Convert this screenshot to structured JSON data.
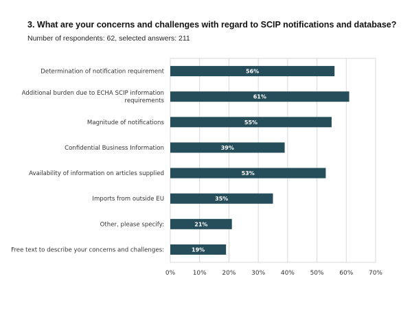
{
  "header": {
    "title": "3. What are your concerns and challenges with regard to SCIP notifications and database?",
    "subtitle": "Number of respondents: 62, selected answers: 211"
  },
  "chart_data": {
    "type": "bar",
    "orientation": "horizontal",
    "categories": [
      [
        "Determination of notification requirement"
      ],
      [
        "Additional burden due to ECHA SCIP information",
        "requirements"
      ],
      [
        "Magnitude of notifications"
      ],
      [
        "Confidential Business Information"
      ],
      [
        "Availability of information on articles supplied"
      ],
      [
        "Imports from outside EU"
      ],
      [
        "Other, please specify:"
      ],
      [
        "Free text to describe your concerns and challenges:"
      ]
    ],
    "values": [
      56,
      61,
      55,
      39,
      53,
      35,
      21,
      19
    ],
    "value_labels": [
      "56%",
      "61%",
      "55%",
      "39%",
      "53%",
      "35%",
      "21%",
      "19%"
    ],
    "xlim": [
      0,
      70
    ],
    "xticks": [
      "0%",
      "10%",
      "20%",
      "30%",
      "40%",
      "50%",
      "60%",
      "70%"
    ],
    "grid": true,
    "bar_color": "#264e5a",
    "label_color": "#ffffff",
    "grid_color": "#d9d9d9",
    "text_color": "#333333"
  }
}
